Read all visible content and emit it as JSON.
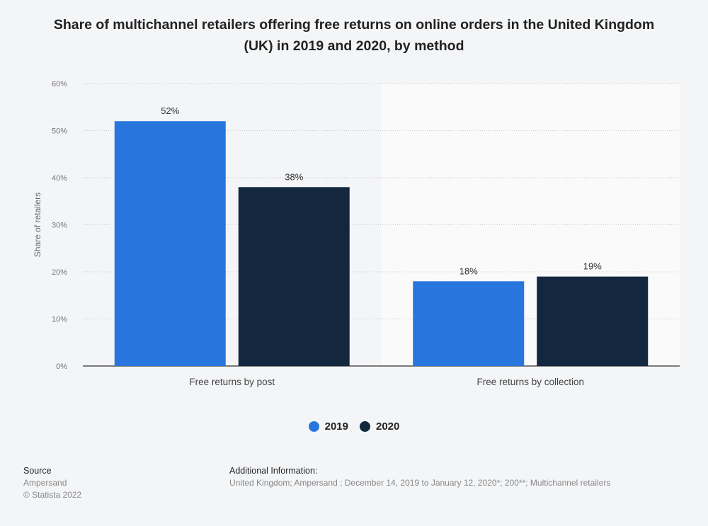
{
  "chart_data": {
    "type": "bar",
    "title": "Share of multichannel retailers offering free returns on online orders in the United Kingdom (UK) in 2019 and 2020, by method",
    "xlabel": "",
    "ylabel": "Share of retailers",
    "ylim": [
      0,
      60
    ],
    "yticks": [
      "0%",
      "10%",
      "20%",
      "30%",
      "40%",
      "50%",
      "60%"
    ],
    "categories": [
      "Free returns by post",
      "Free returns by collection"
    ],
    "series": [
      {
        "name": "2019",
        "color": "#2876dd",
        "values": [
          52,
          18
        ],
        "labels": [
          "52%",
          "18%"
        ]
      },
      {
        "name": "2020",
        "color": "#13273f",
        "values": [
          38,
          19
        ],
        "labels": [
          "38%",
          "19%"
        ]
      }
    ],
    "grid": true,
    "legend": "bottom-center"
  },
  "footer": {
    "source_heading": "Source",
    "source": "Ampersand",
    "copyright": "© Statista 2022",
    "info_heading": "Additional Information:",
    "info": "United Kingdom; Ampersand ; December 14, 2019 to January 12, 2020*; 200**; Multichannel retailers"
  }
}
